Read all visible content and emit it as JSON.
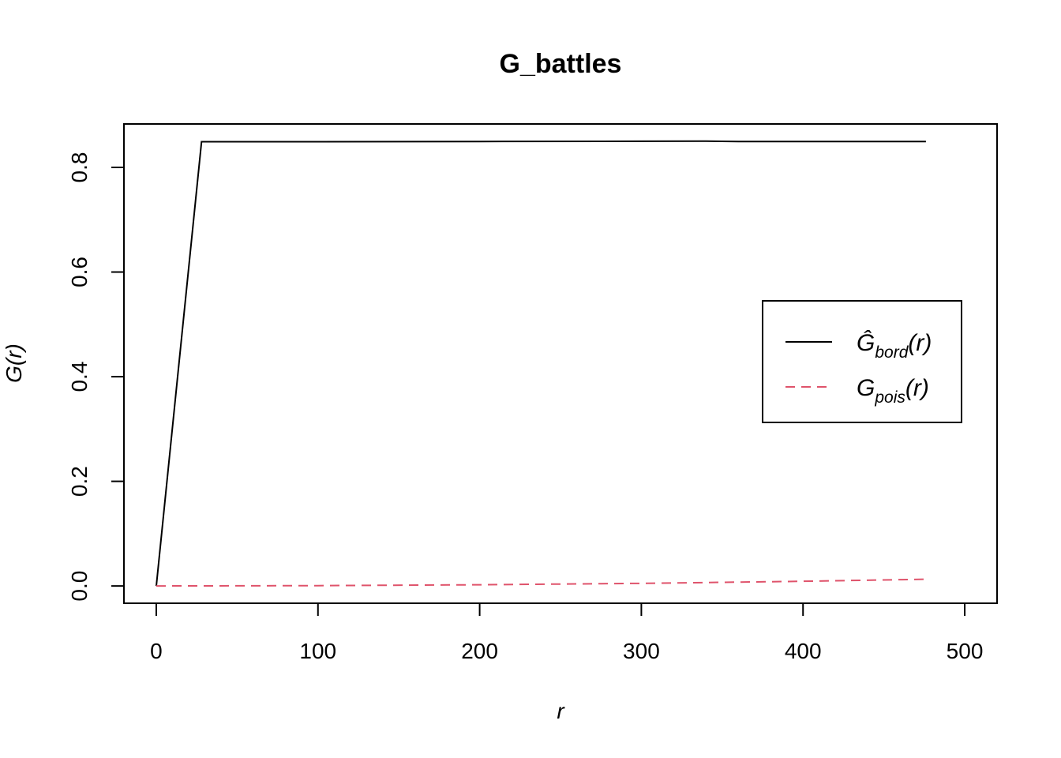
{
  "chart_data": {
    "type": "line",
    "title": "G_battles",
    "xlabel": "r",
    "ylabel": "G(r)",
    "xlim": [
      -20,
      520
    ],
    "ylim": [
      -0.033,
      0.883
    ],
    "x_ticks": [
      0,
      100,
      200,
      300,
      400,
      500
    ],
    "y_ticks": [
      0.0,
      0.2,
      0.4,
      0.6,
      0.8
    ],
    "x_tick_labels": [
      "0",
      "100",
      "200",
      "300",
      "400",
      "500"
    ],
    "y_tick_labels": [
      "0.0",
      "0.2",
      "0.4",
      "0.6",
      "0.8"
    ],
    "grid": false,
    "legend_position": "right",
    "series": [
      {
        "name": "Ĝbord(r)",
        "legend_main": "Ĝ",
        "legend_sub": "bord",
        "legend_tail": "(r)",
        "color": "#000000",
        "dash": "solid",
        "x": [
          0,
          28,
          100,
          200,
          300,
          340,
          360,
          400,
          476
        ],
        "y": [
          0.0,
          0.849,
          0.849,
          0.8495,
          0.85,
          0.8502,
          0.8495,
          0.8495,
          0.8495
        ]
      },
      {
        "name": "Gpois(r)",
        "legend_main": "G",
        "legend_sub": "pois",
        "legend_tail": "(r)",
        "color": "#DF536B",
        "dash": "dashed",
        "x": [
          0,
          100,
          200,
          300,
          400,
          476
        ],
        "y": [
          0.0,
          0.0006,
          0.0023,
          0.0051,
          0.009,
          0.0128
        ]
      }
    ]
  }
}
